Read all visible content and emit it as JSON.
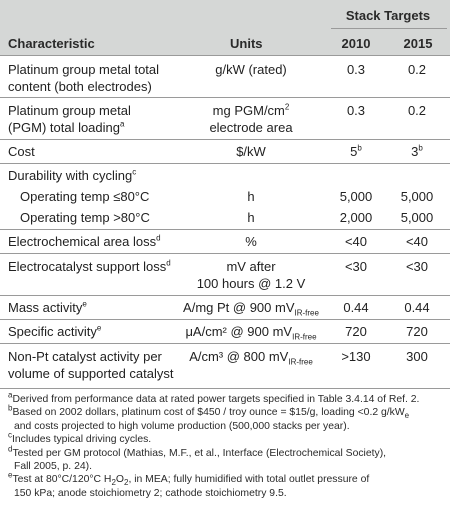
{
  "header": {
    "stack_targets": "Stack Targets",
    "characteristic": "Characteristic",
    "units": "Units",
    "year1": "2010",
    "year2": "2015"
  },
  "rows": [
    {
      "char1": "Platinum group metal total",
      "char2": "content (both electrodes)",
      "units": "g/kW (rated)",
      "v2010": "0.3",
      "v2015": "0.2"
    },
    {
      "char1": "Platinum group metal",
      "char2": "(PGM) total loading",
      "char_sup": "a",
      "units1": "mg PGM/cm",
      "units1_sup": "2",
      "units2": "electrode area",
      "v2010": "0.3",
      "v2015": "0.2"
    },
    {
      "char1": "Cost",
      "units": "$/kW",
      "v2010": "5",
      "v2010_sup": "b",
      "v2015": "3",
      "v2015_sup": "b"
    },
    {
      "char1": "Durability with cycling",
      "char_sup": "c"
    },
    {
      "char1": "Operating temp ≤80°C",
      "units": "h",
      "v2010": "5,000",
      "v2015": "5,000"
    },
    {
      "char1": "Operating temp >80°C",
      "units": "h",
      "v2010": "2,000",
      "v2015": "5,000"
    },
    {
      "char1": "Electrochemical area loss",
      "char_sup": "d",
      "units": "%",
      "v2010": "<40",
      "v2015": "<40"
    },
    {
      "char1": "Electrocatalyst support loss",
      "char_sup": "d",
      "units1": "mV after",
      "units2": "100 hours @ 1.2 V",
      "v2010": "<30",
      "v2015": "<30"
    },
    {
      "char1": "Mass activity",
      "char_sup": "e",
      "units": "A/mg Pt @ 900 mV",
      "units_sub": "IR-free",
      "v2010": "0.44",
      "v2015": "0.44"
    },
    {
      "char1": "Specific activity",
      "char_sup": "e",
      "units": "μA/cm² @ 900 mV",
      "units_sub": "IR-free",
      "v2010": "720",
      "v2015": "720"
    },
    {
      "char1": "Non-Pt catalyst activity per",
      "char2": "volume of supported catalyst",
      "units": "A/cm³ @ 800 mV",
      "units_sub": "IR-free",
      "v2010": ">130",
      "v2015": "300"
    }
  ],
  "footnotes": {
    "a_mark": "a",
    "a": "Derived from performance data at rated power targets specified in Table 3.4.14 of Ref. 2.",
    "b_mark": "b",
    "b1": "Based on 2002 dollars, platinum cost of $450 / troy ounce = $15/g, loading <0.2 g/kW",
    "b1_sub": "e",
    "b2": "and costs projected to high volume production (500,000 stacks per year).",
    "c_mark": "c",
    "c": "Includes typical driving cycles.",
    "d_mark": "d",
    "d1": "Tested per GM protocol (Mathias, M.F., et al., Interface (Electrochemical Society),",
    "d2": "Fall 2005, p. 24).",
    "e_mark": "e",
    "e1a": "Test at 80°C/120°C H",
    "e1_sub1": "2",
    "e1b": "O",
    "e1_sub2": "2",
    "e1c": ", in MEA; fully humidified with total outlet pressure of",
    "e2": "150 kPa; anode stoichiometry 2; cathode stoichiometry 9.5."
  }
}
